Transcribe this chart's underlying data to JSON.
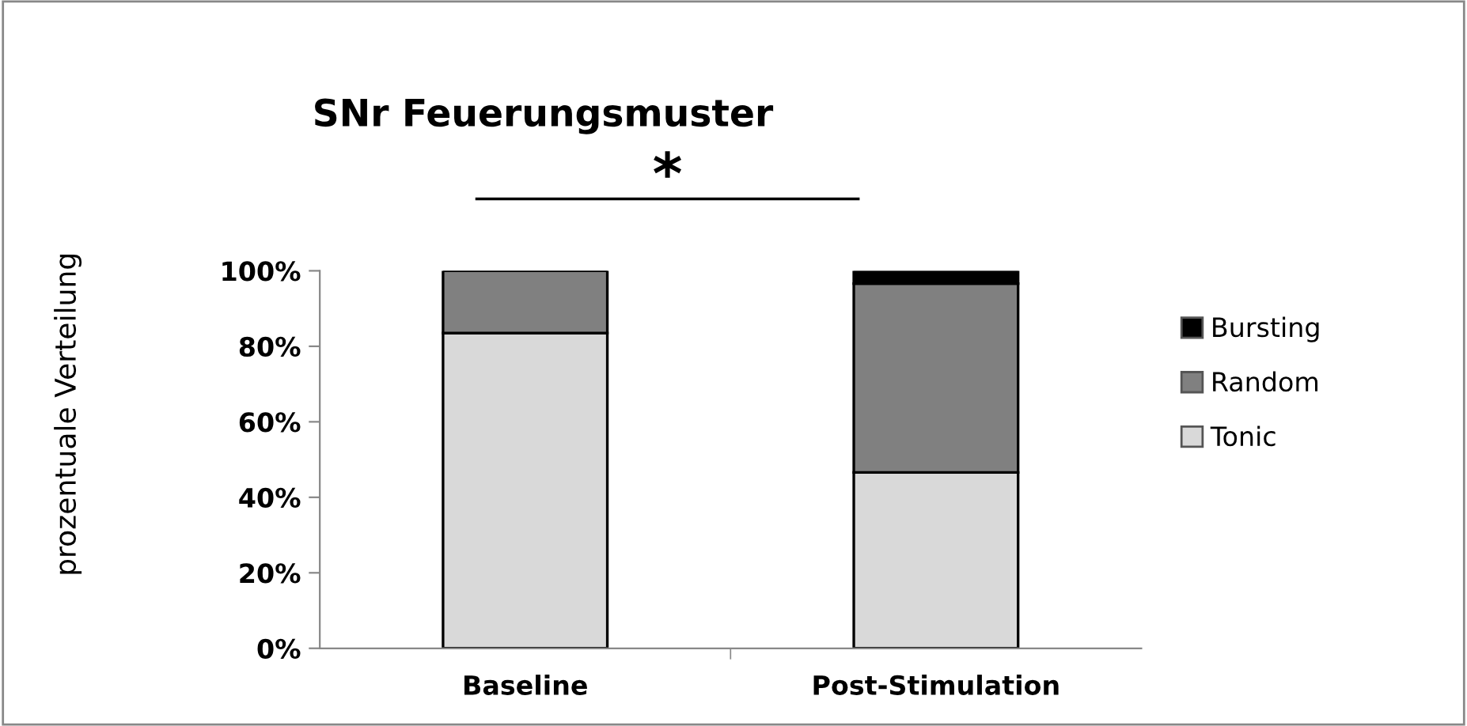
{
  "chart_data": {
    "type": "bar",
    "title": "SNr Feuerungsmuster",
    "ylabel": "prozentuale Verteilung",
    "categories": [
      "Baseline",
      "Post-Stimulation"
    ],
    "series": [
      {
        "name": "Tonic",
        "color": "#d9d9d9",
        "values": [
          83.5,
          46.6
        ]
      },
      {
        "name": "Random",
        "color": "#808080",
        "values": [
          16.5,
          50.0
        ]
      },
      {
        "name": "Bursting",
        "color": "#000000",
        "values": [
          0,
          3.4
        ]
      }
    ],
    "stacked": true,
    "ylim": [
      0,
      100
    ],
    "yticks": [
      {
        "value": 0,
        "label": "0%"
      },
      {
        "value": 20,
        "label": "20%"
      },
      {
        "value": 40,
        "label": "40%"
      },
      {
        "value": 60,
        "label": "60%"
      },
      {
        "value": 80,
        "label": "80%"
      },
      {
        "value": 100,
        "label": "100%"
      }
    ],
    "annotations": [
      "*"
    ],
    "legend": "right",
    "grid": false
  }
}
